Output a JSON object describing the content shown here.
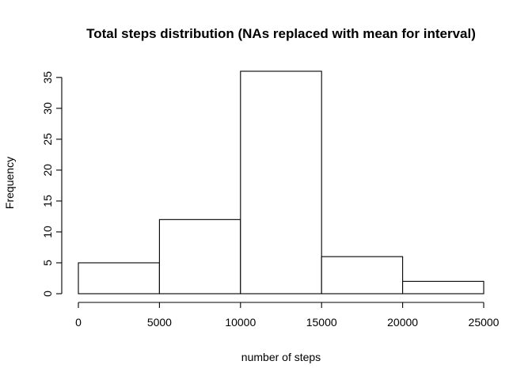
{
  "chart_data": {
    "type": "bar",
    "title": "Total steps distribution (NAs replaced with mean for interval)",
    "xlabel": "number of steps",
    "ylabel": "Frequency",
    "bins": [
      {
        "from": 0,
        "to": 5000,
        "count": 5
      },
      {
        "from": 5000,
        "to": 10000,
        "count": 12
      },
      {
        "from": 10000,
        "to": 15000,
        "count": 36
      },
      {
        "from": 15000,
        "to": 20000,
        "count": 6
      },
      {
        "from": 20000,
        "to": 25000,
        "count": 2
      }
    ],
    "xlim": [
      0,
      25000
    ],
    "ylim": [
      0,
      36
    ],
    "x_ticks": [
      "0",
      "5000",
      "10000",
      "15000",
      "20000",
      "25000"
    ],
    "y_ticks": [
      "0",
      "5",
      "10",
      "15",
      "20",
      "25",
      "30",
      "35"
    ],
    "grid": false,
    "bar_fill": "#ffffff",
    "bar_stroke": "#000000"
  }
}
